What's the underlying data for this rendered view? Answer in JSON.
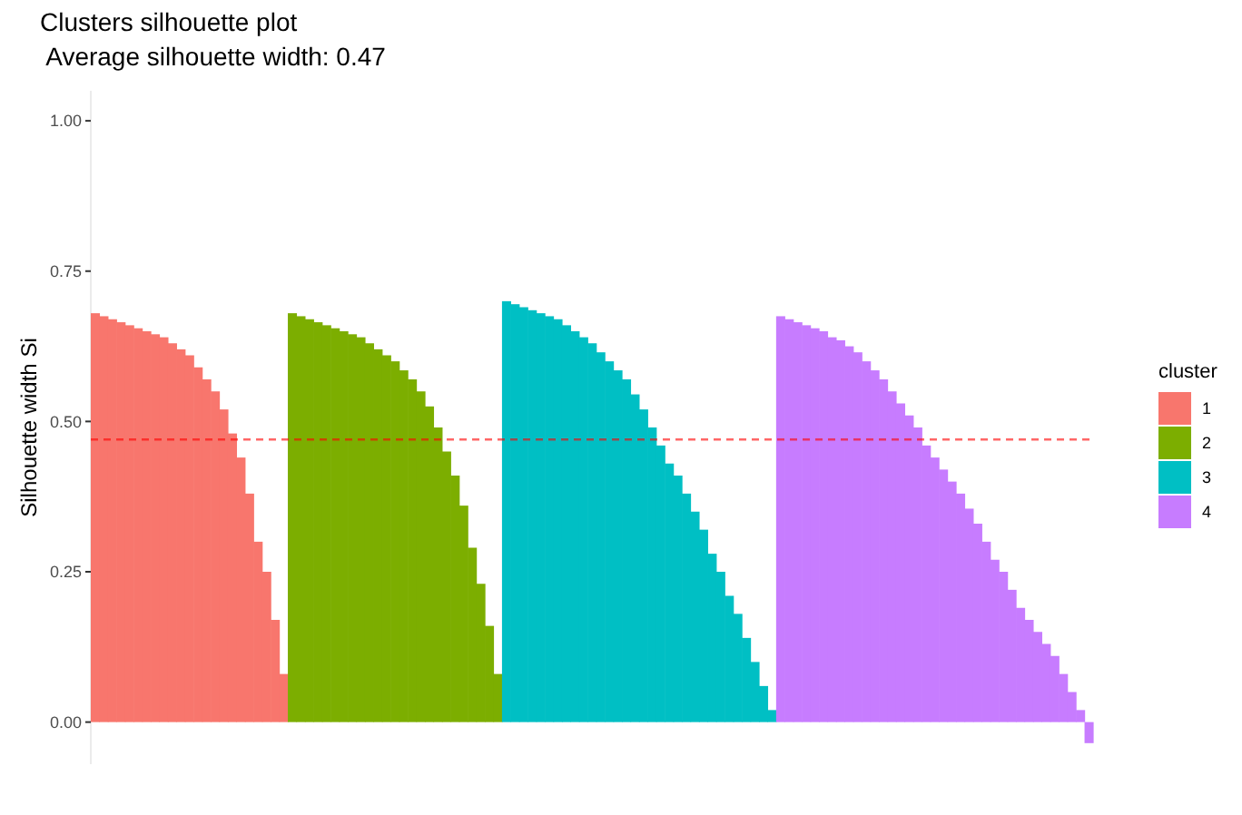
{
  "chart_data": {
    "type": "bar",
    "title": "Clusters silhouette plot",
    "subtitle": " Average silhouette width: 0.47",
    "ylabel": "Silhouette width Si",
    "legend_title": "cluster",
    "legend": "right",
    "grid": false,
    "ylim": [
      -0.07,
      1.05
    ],
    "yticks": [
      {
        "value": 0,
        "label": "0.00"
      },
      {
        "value": 0.25,
        "label": "0.25"
      },
      {
        "value": 0.5,
        "label": "0.50"
      },
      {
        "value": 0.75,
        "label": "0.75"
      },
      {
        "value": 1,
        "label": "1.00"
      }
    ],
    "ref_lines": [
      {
        "axis": "y",
        "value": 0.47,
        "color": "#ff0000",
        "line_style": "dashed"
      }
    ],
    "categories": [
      null,
      null,
      null,
      null,
      null,
      null,
      null,
      null,
      null,
      null,
      null,
      null,
      null,
      null,
      null,
      null,
      null,
      null,
      null,
      null,
      null,
      null,
      null,
      null,
      null,
      null,
      null,
      null,
      null,
      null,
      null,
      null,
      null,
      null,
      null,
      null,
      null,
      null,
      null,
      null,
      null,
      null,
      null,
      null,
      null,
      null,
      null,
      null,
      null,
      null,
      null,
      null,
      null,
      null,
      null,
      null,
      null,
      null,
      null,
      null,
      null,
      null,
      null,
      null,
      null,
      null,
      null,
      null,
      null,
      null,
      null,
      null,
      null,
      null,
      null,
      null,
      null,
      null,
      null,
      null,
      null,
      null,
      null,
      null,
      null,
      null,
      null,
      null,
      null,
      null,
      null,
      null,
      null,
      null,
      null,
      null,
      null,
      null,
      null,
      null,
      null,
      null,
      null,
      null,
      null,
      null,
      null,
      null,
      null,
      null,
      null,
      null,
      null,
      null,
      null,
      null,
      null
    ],
    "series": [
      {
        "name": "1",
        "color": "#f8766d",
        "values": [
          0.68,
          0.675,
          0.67,
          0.665,
          0.66,
          0.655,
          0.65,
          0.645,
          0.64,
          0.63,
          0.62,
          0.61,
          0.59,
          0.57,
          0.55,
          0.52,
          0.48,
          0.44,
          0.38,
          0.3,
          0.25,
          0.17,
          0.08,
          null,
          null,
          null,
          null,
          null,
          null,
          null,
          null,
          null,
          null,
          null,
          null,
          null,
          null,
          null,
          null,
          null,
          null,
          null,
          null,
          null,
          null,
          null,
          null,
          null,
          null,
          null,
          null,
          null,
          null,
          null,
          null,
          null,
          null,
          null,
          null,
          null,
          null,
          null,
          null,
          null,
          null,
          null,
          null,
          null,
          null,
          null,
          null,
          null,
          null,
          null,
          null,
          null,
          null,
          null,
          null,
          null,
          null,
          null,
          null,
          null,
          null,
          null,
          null,
          null,
          null,
          null,
          null,
          null,
          null,
          null,
          null,
          null,
          null,
          null,
          null,
          null,
          null,
          null,
          null,
          null,
          null,
          null,
          null,
          null,
          null,
          null,
          null,
          null,
          null,
          null,
          null,
          null,
          null
        ]
      },
      {
        "name": "2",
        "color": "#7cae00",
        "values": [
          null,
          null,
          null,
          null,
          null,
          null,
          null,
          null,
          null,
          null,
          null,
          null,
          null,
          null,
          null,
          null,
          null,
          null,
          null,
          null,
          null,
          null,
          null,
          0.68,
          0.675,
          0.67,
          0.665,
          0.66,
          0.655,
          0.65,
          0.645,
          0.64,
          0.63,
          0.62,
          0.61,
          0.6,
          0.585,
          0.57,
          0.55,
          0.525,
          0.49,
          0.45,
          0.41,
          0.36,
          0.29,
          0.23,
          0.16,
          0.08,
          null,
          null,
          null,
          null,
          null,
          null,
          null,
          null,
          null,
          null,
          null,
          null,
          null,
          null,
          null,
          null,
          null,
          null,
          null,
          null,
          null,
          null,
          null,
          null,
          null,
          null,
          null,
          null,
          null,
          null,
          null,
          null,
          null,
          null,
          null,
          null,
          null,
          null,
          null,
          null,
          null,
          null,
          null,
          null,
          null,
          null,
          null,
          null,
          null,
          null,
          null,
          null,
          null,
          null,
          null,
          null,
          null,
          null,
          null,
          null,
          null,
          null,
          null,
          null,
          null,
          null,
          null,
          null,
          null
        ]
      },
      {
        "name": "3",
        "color": "#00bfc4",
        "values": [
          null,
          null,
          null,
          null,
          null,
          null,
          null,
          null,
          null,
          null,
          null,
          null,
          null,
          null,
          null,
          null,
          null,
          null,
          null,
          null,
          null,
          null,
          null,
          null,
          null,
          null,
          null,
          null,
          null,
          null,
          null,
          null,
          null,
          null,
          null,
          null,
          null,
          null,
          null,
          null,
          null,
          null,
          null,
          null,
          null,
          null,
          null,
          null,
          0.7,
          0.695,
          0.69,
          0.685,
          0.68,
          0.675,
          0.67,
          0.66,
          0.65,
          0.64,
          0.63,
          0.615,
          0.6,
          0.585,
          0.57,
          0.545,
          0.52,
          0.49,
          0.46,
          0.43,
          0.41,
          0.38,
          0.35,
          0.32,
          0.28,
          0.25,
          0.21,
          0.18,
          0.14,
          0.1,
          0.06,
          0.02,
          null,
          null,
          null,
          null,
          null,
          null,
          null,
          null,
          null,
          null,
          null,
          null,
          null,
          null,
          null,
          null,
          null,
          null,
          null,
          null,
          null,
          null,
          null,
          null,
          null,
          null,
          null,
          null,
          null,
          null,
          null,
          null,
          null,
          null,
          null,
          null,
          null
        ]
      },
      {
        "name": "4",
        "color": "#c77cff",
        "values": [
          null,
          null,
          null,
          null,
          null,
          null,
          null,
          null,
          null,
          null,
          null,
          null,
          null,
          null,
          null,
          null,
          null,
          null,
          null,
          null,
          null,
          null,
          null,
          null,
          null,
          null,
          null,
          null,
          null,
          null,
          null,
          null,
          null,
          null,
          null,
          null,
          null,
          null,
          null,
          null,
          null,
          null,
          null,
          null,
          null,
          null,
          null,
          null,
          null,
          null,
          null,
          null,
          null,
          null,
          null,
          null,
          null,
          null,
          null,
          null,
          null,
          null,
          null,
          null,
          null,
          null,
          null,
          null,
          null,
          null,
          null,
          null,
          null,
          null,
          null,
          null,
          null,
          null,
          null,
          null,
          0.675,
          0.67,
          0.665,
          0.66,
          0.655,
          0.65,
          0.64,
          0.635,
          0.625,
          0.615,
          0.6,
          0.585,
          0.57,
          0.55,
          0.53,
          0.51,
          0.49,
          0.46,
          0.44,
          0.42,
          0.4,
          0.38,
          0.355,
          0.33,
          0.3,
          0.27,
          0.25,
          0.22,
          0.19,
          0.17,
          0.15,
          0.13,
          0.11,
          0.08,
          0.05,
          0.02,
          -0.035
        ]
      }
    ]
  }
}
